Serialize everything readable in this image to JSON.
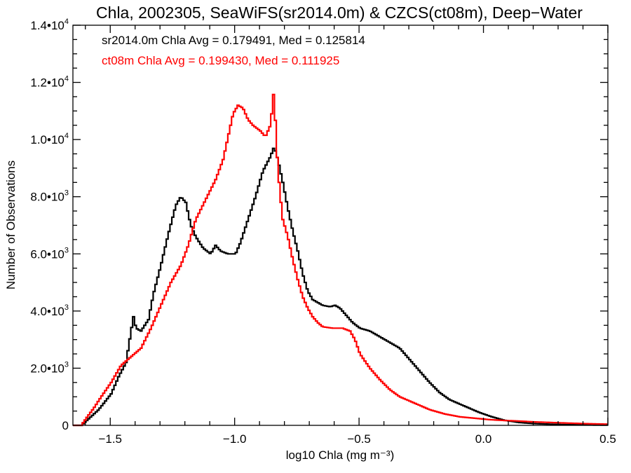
{
  "colors": {
    "black_series": "#000000",
    "red_series": "#ff0000",
    "axis": "#000000",
    "background": "#ffffff"
  },
  "chart_data": {
    "type": "line",
    "title": "Chla, 2002305, SeaWiFS(sr2014.0m) & CZCS(ct08m), Deep−Water",
    "xlabel": "log10 Chla (mg m⁻³)",
    "ylabel": "Number of Observations",
    "xlim": [
      -1.65,
      0.5
    ],
    "ylim": [
      0,
      14000
    ],
    "x_ticks": [
      -1.5,
      -1.0,
      -0.5,
      0.0,
      0.5
    ],
    "x_tick_labels": [
      "−1.5",
      "−1.0",
      "−0.5",
      "0.0",
      "0.5"
    ],
    "y_ticks": [
      0,
      2000,
      4000,
      6000,
      8000,
      10000,
      12000,
      14000
    ],
    "y_tick_labels": [
      {
        "mant": "0",
        "exp": ""
      },
      {
        "mant": "2.0•10",
        "exp": "3"
      },
      {
        "mant": "4.0•10",
        "exp": "3"
      },
      {
        "mant": "6.0•10",
        "exp": "3"
      },
      {
        "mant": "8.0•10",
        "exp": "3"
      },
      {
        "mant": "1.0•10",
        "exp": "4"
      },
      {
        "mant": "1.2•10",
        "exp": "4"
      },
      {
        "mant": "1.4•10",
        "exp": "4"
      }
    ],
    "annotations": [
      "sr2014.0m Chla Avg = 0.179491, Med = 0.125814",
      "ct08m Chla Avg = 0.199430, Med = 0.111925"
    ],
    "grid": false,
    "step": true,
    "series": [
      {
        "color": "#000000",
        "points": [
          [
            -1.65,
            0
          ],
          [
            -1.62,
            0
          ],
          [
            -1.6,
            150
          ],
          [
            -1.55,
            550
          ],
          [
            -1.5,
            1100
          ],
          [
            -1.47,
            1700
          ],
          [
            -1.44,
            2200
          ],
          [
            -1.42,
            3300
          ],
          [
            -1.41,
            3800
          ],
          [
            -1.4,
            3400
          ],
          [
            -1.38,
            3300
          ],
          [
            -1.35,
            3700
          ],
          [
            -1.33,
            4600
          ],
          [
            -1.3,
            5600
          ],
          [
            -1.27,
            6700
          ],
          [
            -1.24,
            7700
          ],
          [
            -1.22,
            8000
          ],
          [
            -1.2,
            7800
          ],
          [
            -1.18,
            7000
          ],
          [
            -1.16,
            6600
          ],
          [
            -1.13,
            6200
          ],
          [
            -1.1,
            6000
          ],
          [
            -1.08,
            6300
          ],
          [
            -1.06,
            6100
          ],
          [
            -1.03,
            6000
          ],
          [
            -1.0,
            6000
          ],
          [
            -0.98,
            6400
          ],
          [
            -0.95,
            7200
          ],
          [
            -0.92,
            8000
          ],
          [
            -0.89,
            8900
          ],
          [
            -0.86,
            9400
          ],
          [
            -0.845,
            9750
          ],
          [
            -0.83,
            9300
          ],
          [
            -0.81,
            8500
          ],
          [
            -0.79,
            7600
          ],
          [
            -0.77,
            6800
          ],
          [
            -0.75,
            6100
          ],
          [
            -0.73,
            5300
          ],
          [
            -0.71,
            4700
          ],
          [
            -0.69,
            4400
          ],
          [
            -0.67,
            4300
          ],
          [
            -0.65,
            4200
          ],
          [
            -0.62,
            4150
          ],
          [
            -0.6,
            4200
          ],
          [
            -0.58,
            4100
          ],
          [
            -0.56,
            3900
          ],
          [
            -0.53,
            3600
          ],
          [
            -0.5,
            3400
          ],
          [
            -0.46,
            3300
          ],
          [
            -0.42,
            3100
          ],
          [
            -0.38,
            2900
          ],
          [
            -0.34,
            2700
          ],
          [
            -0.3,
            2300
          ],
          [
            -0.26,
            1900
          ],
          [
            -0.22,
            1500
          ],
          [
            -0.18,
            1150
          ],
          [
            -0.14,
            900
          ],
          [
            -0.1,
            750
          ],
          [
            -0.06,
            600
          ],
          [
            -0.02,
            450
          ],
          [
            0.03,
            300
          ],
          [
            0.08,
            180
          ],
          [
            0.14,
            100
          ],
          [
            0.2,
            60
          ],
          [
            0.3,
            30
          ],
          [
            0.4,
            15
          ],
          [
            0.5,
            10
          ]
        ]
      },
      {
        "color": "#ff0000",
        "points": [
          [
            -1.65,
            0
          ],
          [
            -1.62,
            0
          ],
          [
            -1.6,
            250
          ],
          [
            -1.57,
            600
          ],
          [
            -1.54,
            1000
          ],
          [
            -1.5,
            1500
          ],
          [
            -1.46,
            2100
          ],
          [
            -1.42,
            2400
          ],
          [
            -1.38,
            2700
          ],
          [
            -1.34,
            3400
          ],
          [
            -1.3,
            4200
          ],
          [
            -1.26,
            5000
          ],
          [
            -1.22,
            5600
          ],
          [
            -1.19,
            6300
          ],
          [
            -1.16,
            7200
          ],
          [
            -1.12,
            7900
          ],
          [
            -1.08,
            8600
          ],
          [
            -1.05,
            9300
          ],
          [
            -1.03,
            10100
          ],
          [
            -1.01,
            10900
          ],
          [
            -0.99,
            11200
          ],
          [
            -0.97,
            11100
          ],
          [
            -0.95,
            10700
          ],
          [
            -0.93,
            10500
          ],
          [
            -0.9,
            10300
          ],
          [
            -0.88,
            10100
          ],
          [
            -0.86,
            10500
          ],
          [
            -0.85,
            11300
          ],
          [
            -0.845,
            11850
          ],
          [
            -0.838,
            10200
          ],
          [
            -0.83,
            9000
          ],
          [
            -0.82,
            8000
          ],
          [
            -0.81,
            7200
          ],
          [
            -0.79,
            6600
          ],
          [
            -0.77,
            5800
          ],
          [
            -0.75,
            5100
          ],
          [
            -0.73,
            4500
          ],
          [
            -0.71,
            4100
          ],
          [
            -0.69,
            3800
          ],
          [
            -0.67,
            3600
          ],
          [
            -0.65,
            3450
          ],
          [
            -0.61,
            3400
          ],
          [
            -0.57,
            3400
          ],
          [
            -0.54,
            3300
          ],
          [
            -0.52,
            3000
          ],
          [
            -0.5,
            2500
          ],
          [
            -0.46,
            2000
          ],
          [
            -0.42,
            1600
          ],
          [
            -0.38,
            1250
          ],
          [
            -0.34,
            1000
          ],
          [
            -0.3,
            850
          ],
          [
            -0.26,
            700
          ],
          [
            -0.22,
            550
          ],
          [
            -0.16,
            400
          ],
          [
            -0.1,
            300
          ],
          [
            -0.04,
            250
          ],
          [
            0.02,
            200
          ],
          [
            0.08,
            170
          ],
          [
            0.14,
            150
          ],
          [
            0.2,
            120
          ],
          [
            0.3,
            90
          ],
          [
            0.4,
            60
          ],
          [
            0.5,
            40
          ]
        ]
      }
    ]
  }
}
